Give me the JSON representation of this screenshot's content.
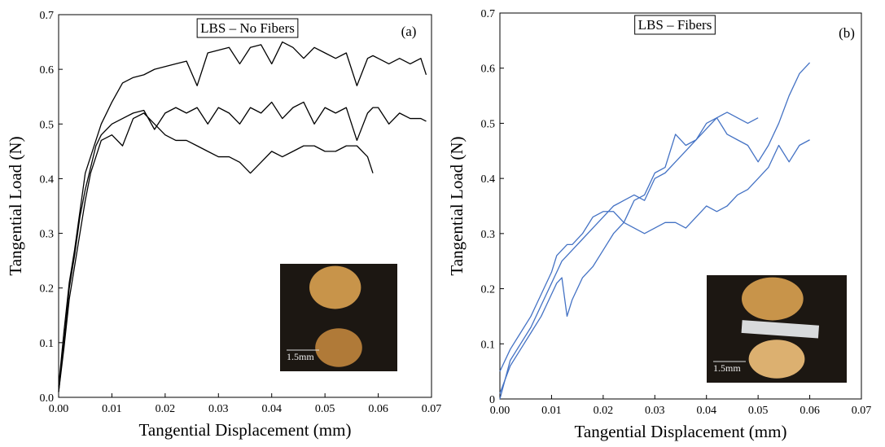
{
  "chart_data": [
    {
      "type": "line",
      "title": "LBS – No Fibers",
      "panel_label": "(a)",
      "inset_label": "1.5mm",
      "xlabel": "Tangential Displacement (mm)",
      "ylabel": "Tangential Load (N)",
      "xlim": [
        0,
        0.07
      ],
      "ylim": [
        0,
        0.7
      ],
      "xticks": [
        {
          "value": 0,
          "label": "0.00"
        },
        0.01,
        0.02,
        0.03,
        0.04,
        0.05,
        0.06,
        0.07
      ],
      "yticks": [
        {
          "value": 0,
          "label": "0.0"
        },
        0.1,
        0.2,
        0.3,
        0.4,
        0.5,
        0.6,
        0.7
      ],
      "x": [
        0,
        0.001,
        0.002,
        0.003,
        0.004,
        0.005,
        0.006,
        0.007,
        0.008,
        0.01,
        0.012,
        0.014,
        0.016,
        0.018,
        0.02,
        0.022,
        0.024,
        0.026,
        0.028,
        0.03,
        0.032,
        0.034,
        0.036,
        0.038,
        0.04,
        0.042,
        0.044,
        0.046,
        0.048,
        0.05,
        0.052,
        0.054,
        0.056,
        0.058,
        0.059,
        0.06,
        0.062,
        0.064,
        0.066,
        0.068,
        0.069
      ],
      "series": [
        {
          "color": "#000000",
          "values": [
            0.02,
            0.12,
            0.21,
            0.27,
            0.34,
            0.41,
            0.44,
            0.47,
            0.5,
            0.54,
            0.575,
            0.585,
            0.59,
            0.6,
            0.605,
            0.61,
            0.615,
            0.57,
            0.63,
            0.635,
            0.64,
            0.61,
            0.64,
            0.645,
            0.61,
            0.65,
            0.64,
            0.62,
            0.64,
            0.63,
            0.62,
            0.63,
            0.57,
            0.62,
            0.625,
            0.62,
            0.61,
            0.62,
            0.61,
            0.62,
            0.59
          ]
        },
        {
          "color": "#000000",
          "values": [
            0.01,
            0.1,
            0.2,
            0.26,
            0.33,
            0.38,
            0.42,
            0.46,
            0.48,
            0.5,
            0.51,
            0.52,
            0.525,
            0.49,
            0.52,
            0.53,
            0.52,
            0.53,
            0.5,
            0.53,
            0.52,
            0.5,
            0.53,
            0.52,
            0.54,
            0.51,
            0.53,
            0.54,
            0.5,
            0.53,
            0.52,
            0.53,
            0.47,
            0.52,
            0.53,
            0.53,
            0.5,
            0.52,
            0.51,
            0.51,
            0.505
          ]
        },
        {
          "color": "#000000",
          "values": [
            0.01,
            0.09,
            0.18,
            0.24,
            0.3,
            0.36,
            0.41,
            0.44,
            0.47,
            0.48,
            0.46,
            0.51,
            0.52,
            0.5,
            0.48,
            0.47,
            0.47,
            0.46,
            0.45,
            0.44,
            0.44,
            0.43,
            0.41,
            0.43,
            0.45,
            0.44,
            0.45,
            0.46,
            0.46,
            0.45,
            0.45,
            0.46,
            0.46,
            0.44,
            0.41,
            null,
            null,
            null,
            null,
            null,
            null
          ]
        }
      ]
    },
    {
      "type": "line",
      "title": "LBS – Fibers",
      "panel_label": "(b)",
      "inset_label": "1.5mm",
      "xlabel": "Tangential Displacement (mm)",
      "ylabel": "Tangential Load (N)",
      "xlim": [
        0,
        0.07
      ],
      "ylim": [
        0,
        0.7
      ],
      "xticks": [
        {
          "value": 0,
          "label": "0.00"
        },
        0.01,
        0.02,
        0.03,
        0.04,
        0.05,
        0.06,
        0.07
      ],
      "yticks": [
        0,
        0.1,
        0.2,
        0.3,
        0.4,
        0.5,
        0.6,
        0.7
      ],
      "x": [
        0,
        0.002,
        0.004,
        0.006,
        0.008,
        0.01,
        0.011,
        0.012,
        0.013,
        0.014,
        0.016,
        0.018,
        0.02,
        0.022,
        0.024,
        0.026,
        0.028,
        0.03,
        0.032,
        0.034,
        0.036,
        0.038,
        0.04,
        0.042,
        0.044,
        0.046,
        0.048,
        0.05,
        0.052,
        0.054,
        0.056,
        0.058,
        0.06
      ],
      "series": [
        {
          "color": "#4472c4",
          "values": [
            0,
            0.07,
            0.1,
            0.13,
            0.17,
            0.21,
            0.23,
            0.25,
            0.26,
            0.27,
            0.29,
            0.31,
            0.33,
            0.35,
            0.36,
            0.37,
            0.36,
            0.4,
            0.41,
            0.43,
            0.45,
            0.47,
            0.5,
            0.51,
            0.48,
            0.47,
            0.46,
            0.43,
            0.46,
            0.5,
            0.55,
            0.59,
            0.61
          ]
        },
        {
          "color": "#4472c4",
          "values": [
            0.05,
            0.09,
            0.12,
            0.15,
            0.19,
            0.23,
            0.26,
            0.27,
            0.28,
            0.28,
            0.3,
            0.33,
            0.34,
            0.34,
            0.32,
            0.36,
            0.37,
            0.41,
            0.42,
            0.48,
            0.46,
            0.47,
            0.49,
            0.51,
            0.52,
            0.51,
            0.5,
            0.51,
            null,
            null,
            null,
            null,
            null
          ]
        },
        {
          "color": "#4472c4",
          "values": [
            0.01,
            0.06,
            0.09,
            0.12,
            0.15,
            0.19,
            0.21,
            0.22,
            0.15,
            0.18,
            0.22,
            0.24,
            0.27,
            0.3,
            0.32,
            0.31,
            0.3,
            0.31,
            0.32,
            0.32,
            0.31,
            0.33,
            0.35,
            0.34,
            0.35,
            0.37,
            0.38,
            0.4,
            0.42,
            0.46,
            0.43,
            0.46,
            0.47
          ]
        }
      ]
    }
  ]
}
